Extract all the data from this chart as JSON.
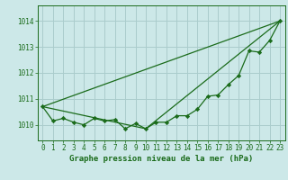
{
  "title": "Graphe pression niveau de la mer (hPa)",
  "background_color": "#cce8e8",
  "grid_color": "#aacccc",
  "line_color": "#1a6b1a",
  "marker_color": "#1a6b1a",
  "xlim": [
    -0.5,
    23.5
  ],
  "ylim": [
    1009.4,
    1014.6
  ],
  "yticks": [
    1010,
    1011,
    1012,
    1013,
    1014
  ],
  "xticks": [
    0,
    1,
    2,
    3,
    4,
    5,
    6,
    7,
    8,
    9,
    10,
    11,
    12,
    13,
    14,
    15,
    16,
    17,
    18,
    19,
    20,
    21,
    22,
    23
  ],
  "series1_x": [
    0,
    1,
    2,
    3,
    4,
    5,
    6,
    7,
    8,
    9,
    10,
    11,
    12,
    13,
    14,
    15,
    16,
    17,
    18,
    19,
    20,
    21,
    22,
    23
  ],
  "series1_y": [
    1010.7,
    1010.15,
    1010.25,
    1010.1,
    1010.0,
    1010.25,
    1010.15,
    1010.2,
    1009.85,
    1010.05,
    1009.85,
    1010.1,
    1010.1,
    1010.35,
    1010.35,
    1010.6,
    1011.1,
    1011.15,
    1011.55,
    1011.9,
    1012.85,
    1012.8,
    1013.25,
    1014.0
  ],
  "series2_x": [
    0,
    23
  ],
  "series2_y": [
    1010.7,
    1014.0
  ],
  "series3_x": [
    0,
    10,
    23
  ],
  "series3_y": [
    1010.7,
    1009.85,
    1014.0
  ],
  "title_fontsize": 6.5,
  "tick_fontsize": 5.5
}
